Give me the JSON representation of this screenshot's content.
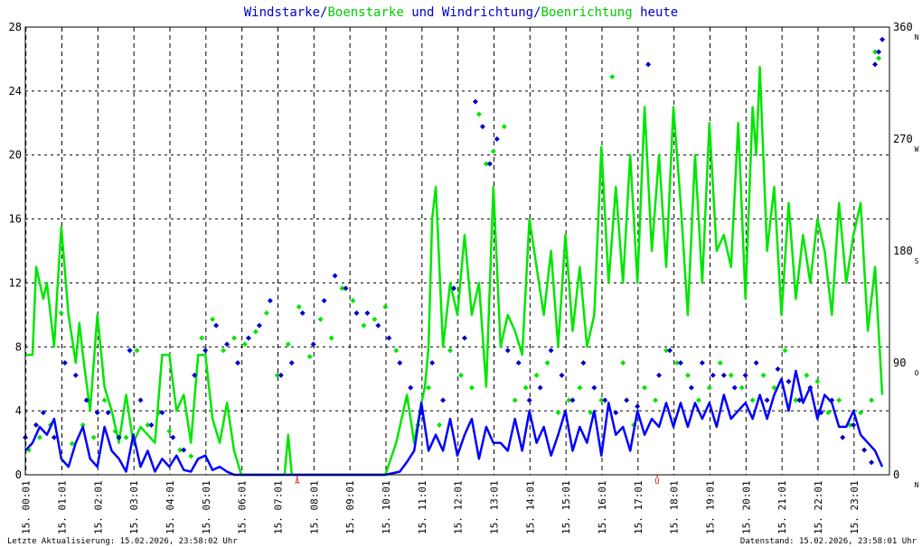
{
  "title": {
    "part1": "Windstarke/",
    "part2": "Boenstarke",
    "part3": " und ",
    "part4": "Windrichtung/",
    "part5": "Boenrichtung",
    "part6": " heute"
  },
  "footer_left": "Letzte Aktualisierung: 15.02.2026, 23:58:02 Uhr",
  "footer_right": "Datenstand: 15.02.2026, 23:58:01 Uhr",
  "markers": [
    {
      "label": "A",
      "hour": 7.55
    },
    {
      "label": "U",
      "hour": 17.55
    }
  ],
  "chart_data": {
    "type": "line",
    "colors": {
      "wind": "#0000ff",
      "gust": "#00e600",
      "wind_dir": "#0000cc",
      "gust_dir": "#00e600",
      "frame": "#000000",
      "title_blue": "#0000cc",
      "title_green": "#00cc00",
      "marker": "#cc0000"
    },
    "grid": true,
    "x_range": [
      0,
      24
    ],
    "x_tick_labels": [
      "15. 00:01",
      "15. 01:01",
      "15. 02:01",
      "15. 03:01",
      "15. 04:01",
      "15. 05:01",
      "15. 06:01",
      "15. 07:01",
      "15. 08:01",
      "15. 09:01",
      "15. 10:01",
      "15. 11:01",
      "15. 12:01",
      "15. 13:01",
      "15. 14:01",
      "15. 15:01",
      "15. 16:01",
      "15. 17:01",
      "15. 18:01",
      "15. 19:01",
      "15. 20:01",
      "15. 21:01",
      "15. 22:01",
      "15. 23:01"
    ],
    "y_left_ticks": [
      "0",
      "4",
      "8",
      "12",
      "16",
      "20",
      "24",
      "28"
    ],
    "y_left_range": [
      0,
      28
    ],
    "y_right_ticks": [
      "0",
      "90",
      "180",
      "270",
      "360"
    ],
    "y_right_range": [
      0,
      360
    ],
    "y_right_compass": [
      "N",
      "O",
      "S",
      "W",
      "N"
    ],
    "series": [
      {
        "role": "gust",
        "x": [
          0.0,
          0.2,
          0.3,
          0.5,
          0.6,
          0.8,
          0.9,
          1.0,
          1.2,
          1.4,
          1.5,
          1.6,
          1.8,
          2.0,
          2.2,
          2.4,
          2.6,
          2.8,
          3.0,
          3.2,
          3.4,
          3.6,
          3.8,
          4.0,
          4.2,
          4.4,
          4.6,
          4.8,
          5.0,
          5.2,
          5.4,
          5.6,
          5.8,
          6.0,
          6.5,
          7.0,
          7.2,
          7.3,
          7.4,
          7.6,
          8.0,
          9.0,
          9.8,
          10.0,
          10.3,
          10.6,
          10.8,
          11.0,
          11.1,
          11.2,
          11.3,
          11.4,
          11.6,
          11.8,
          12.0,
          12.2,
          12.4,
          12.6,
          12.8,
          13.0,
          13.2,
          13.4,
          13.6,
          13.8,
          14.0,
          14.2,
          14.4,
          14.6,
          14.8,
          15.0,
          15.2,
          15.4,
          15.6,
          15.8,
          16.0,
          16.2,
          16.4,
          16.6,
          16.8,
          17.0,
          17.2,
          17.4,
          17.6,
          17.8,
          18.0,
          18.2,
          18.4,
          18.6,
          18.8,
          19.0,
          19.2,
          19.4,
          19.6,
          19.8,
          20.0,
          20.2,
          20.3,
          20.4,
          20.6,
          20.8,
          21.0,
          21.2,
          21.4,
          21.6,
          21.8,
          22.0,
          22.2,
          22.4,
          22.6,
          22.8,
          23.0,
          23.2,
          23.4,
          23.6,
          23.8
        ],
        "values": [
          7.5,
          7.5,
          13,
          11,
          12,
          8,
          12,
          15.5,
          10,
          7,
          9.5,
          7.5,
          4,
          10,
          5.5,
          4,
          2,
          5,
          2,
          3,
          2.5,
          2,
          7.5,
          7.5,
          4,
          5,
          2,
          7.5,
          7.5,
          3.5,
          2,
          4.5,
          1.5,
          0,
          0,
          0,
          0,
          2.5,
          0,
          0,
          0,
          0,
          0,
          0,
          2,
          5,
          2,
          4.5,
          5.5,
          8,
          16,
          18,
          8,
          12,
          10,
          15,
          10,
          12,
          5.5,
          18,
          8,
          10,
          9,
          7.5,
          16,
          13,
          10,
          14,
          8,
          15,
          9,
          13,
          8,
          10,
          20.5,
          12,
          18,
          12,
          20,
          12,
          23,
          14,
          20,
          13,
          23,
          17,
          10,
          20,
          12,
          22,
          14,
          15,
          13,
          22,
          11,
          23,
          20,
          25.5,
          14,
          18,
          10,
          17,
          11,
          15,
          12,
          16,
          14,
          10,
          17,
          12,
          15,
          17,
          9,
          13,
          5
        ]
      },
      {
        "role": "wind",
        "x": [
          0.0,
          0.2,
          0.4,
          0.6,
          0.8,
          1.0,
          1.2,
          1.4,
          1.6,
          1.8,
          2.0,
          2.2,
          2.4,
          2.6,
          2.8,
          3.0,
          3.2,
          3.4,
          3.6,
          3.8,
          4.0,
          4.2,
          4.4,
          4.6,
          4.8,
          5.0,
          5.2,
          5.4,
          5.6,
          5.8,
          6.0,
          7.0,
          8.0,
          9.0,
          9.5,
          10.0,
          10.4,
          10.6,
          10.8,
          11.0,
          11.2,
          11.4,
          11.6,
          11.8,
          12.0,
          12.2,
          12.4,
          12.6,
          12.8,
          13.0,
          13.2,
          13.4,
          13.6,
          13.8,
          14.0,
          14.2,
          14.4,
          14.6,
          14.8,
          15.0,
          15.2,
          15.4,
          15.6,
          15.8,
          16.0,
          16.2,
          16.4,
          16.6,
          16.8,
          17.0,
          17.2,
          17.4,
          17.6,
          17.8,
          18.0,
          18.2,
          18.4,
          18.6,
          18.8,
          19.0,
          19.2,
          19.4,
          19.6,
          19.8,
          20.0,
          20.2,
          20.4,
          20.6,
          20.8,
          21.0,
          21.2,
          21.4,
          21.6,
          21.8,
          22.0,
          22.2,
          22.4,
          22.6,
          22.8,
          23.0,
          23.2,
          23.4,
          23.6,
          23.8
        ],
        "values": [
          1.5,
          2,
          3,
          2.5,
          3.5,
          1,
          0.5,
          2,
          3,
          1,
          0.5,
          3,
          1.5,
          1,
          0.2,
          2.5,
          0.5,
          1.5,
          0.2,
          1,
          0.5,
          1.2,
          0.3,
          0.2,
          1,
          1.2,
          0.3,
          0.5,
          0.2,
          0,
          0,
          0,
          0,
          0,
          0,
          0,
          0.2,
          0.8,
          1.5,
          4.5,
          1.5,
          2.5,
          1.5,
          3.5,
          1.2,
          2.5,
          3.5,
          1,
          3,
          2,
          2,
          1.5,
          3.5,
          1.5,
          4,
          2,
          3,
          1.2,
          2.5,
          4,
          1.5,
          3,
          2,
          4,
          1.2,
          4.5,
          2.5,
          3,
          1.5,
          4,
          2.5,
          3.5,
          3,
          4.5,
          3,
          4.5,
          3,
          4.5,
          3.5,
          4.5,
          3,
          5,
          3.5,
          4,
          4.5,
          3.5,
          5,
          3.5,
          5,
          6,
          4,
          6.5,
          4.5,
          5.5,
          3.5,
          5,
          4.5,
          3,
          3,
          4,
          2.5,
          2,
          1.5,
          0.5
        ]
      },
      {
        "role": "wind_dir",
        "x": [
          0.0,
          0.3,
          0.5,
          0.8,
          1.1,
          1.4,
          1.7,
          2.0,
          2.3,
          2.6,
          2.9,
          3.2,
          3.5,
          3.8,
          4.1,
          4.4,
          4.7,
          5.0,
          5.3,
          5.6,
          5.9,
          6.2,
          6.5,
          6.8,
          7.1,
          7.4,
          7.7,
          8.0,
          8.3,
          8.6,
          8.9,
          9.2,
          9.5,
          9.8,
          10.1,
          10.4,
          10.7,
          11.0,
          11.3,
          11.6,
          11.9,
          12.2,
          12.5,
          12.7,
          12.9,
          13.1,
          13.4,
          13.7,
          14.0,
          14.3,
          14.6,
          14.9,
          15.2,
          15.5,
          15.8,
          16.1,
          16.4,
          16.7,
          17.0,
          17.3,
          17.6,
          17.9,
          18.2,
          18.5,
          18.8,
          19.1,
          19.4,
          19.7,
          20.0,
          20.3,
          20.6,
          20.9,
          21.2,
          21.5,
          21.8,
          22.1,
          22.4,
          22.7,
          23.0,
          23.3,
          23.5,
          23.6,
          23.7,
          23.8
        ],
        "values": [
          30,
          40,
          50,
          30,
          90,
          80,
          60,
          50,
          50,
          30,
          100,
          60,
          40,
          50,
          30,
          20,
          80,
          100,
          120,
          105,
          90,
          110,
          120,
          140,
          80,
          90,
          130,
          105,
          140,
          160,
          150,
          130,
          130,
          120,
          110,
          90,
          70,
          50,
          90,
          60,
          150,
          110,
          300,
          280,
          250,
          270,
          100,
          90,
          60,
          70,
          100,
          80,
          60,
          90,
          70,
          60,
          50,
          60,
          55,
          330,
          80,
          100,
          90,
          70,
          90,
          80,
          80,
          70,
          80,
          90,
          60,
          85,
          75,
          60,
          70,
          50,
          60,
          30,
          40,
          20,
          10,
          330,
          340,
          350
        ]
      },
      {
        "role": "gust_dir",
        "x": [
          0.1,
          0.4,
          0.7,
          1.0,
          1.3,
          1.6,
          1.9,
          2.2,
          2.5,
          2.8,
          3.1,
          3.4,
          3.7,
          4.0,
          4.3,
          4.6,
          4.9,
          5.2,
          5.5,
          5.8,
          6.1,
          6.4,
          6.7,
          7.0,
          7.3,
          7.6,
          7.9,
          8.2,
          8.5,
          8.8,
          9.1,
          9.4,
          9.7,
          10.0,
          10.3,
          10.6,
          10.9,
          11.2,
          11.5,
          11.8,
          12.1,
          12.4,
          12.6,
          12.8,
          13.0,
          13.3,
          13.6,
          13.9,
          14.2,
          14.5,
          14.8,
          15.1,
          15.4,
          15.7,
          16.0,
          16.3,
          16.6,
          16.9,
          17.2,
          17.5,
          17.8,
          18.1,
          18.4,
          18.7,
          19.0,
          19.3,
          19.6,
          19.9,
          20.2,
          20.5,
          20.8,
          21.1,
          21.4,
          21.7,
          22.0,
          22.3,
          22.6,
          22.9,
          23.2,
          23.5,
          23.6,
          23.7
        ],
        "values": [
          20,
          30,
          40,
          130,
          25,
          40,
          30,
          60,
          35,
          30,
          100,
          40,
          50,
          35,
          20,
          15,
          110,
          125,
          100,
          110,
          105,
          115,
          130,
          80,
          105,
          135,
          95,
          125,
          110,
          150,
          140,
          120,
          125,
          135,
          100,
          60,
          40,
          70,
          40,
          100,
          80,
          70,
          290,
          250,
          260,
          280,
          60,
          70,
          80,
          90,
          50,
          60,
          70,
          50,
          60,
          320,
          90,
          40,
          70,
          60,
          100,
          90,
          80,
          60,
          70,
          90,
          80,
          70,
          60,
          80,
          70,
          100,
          60,
          80,
          75,
          50,
          60,
          40,
          50,
          60,
          340,
          335
        ]
      }
    ]
  }
}
